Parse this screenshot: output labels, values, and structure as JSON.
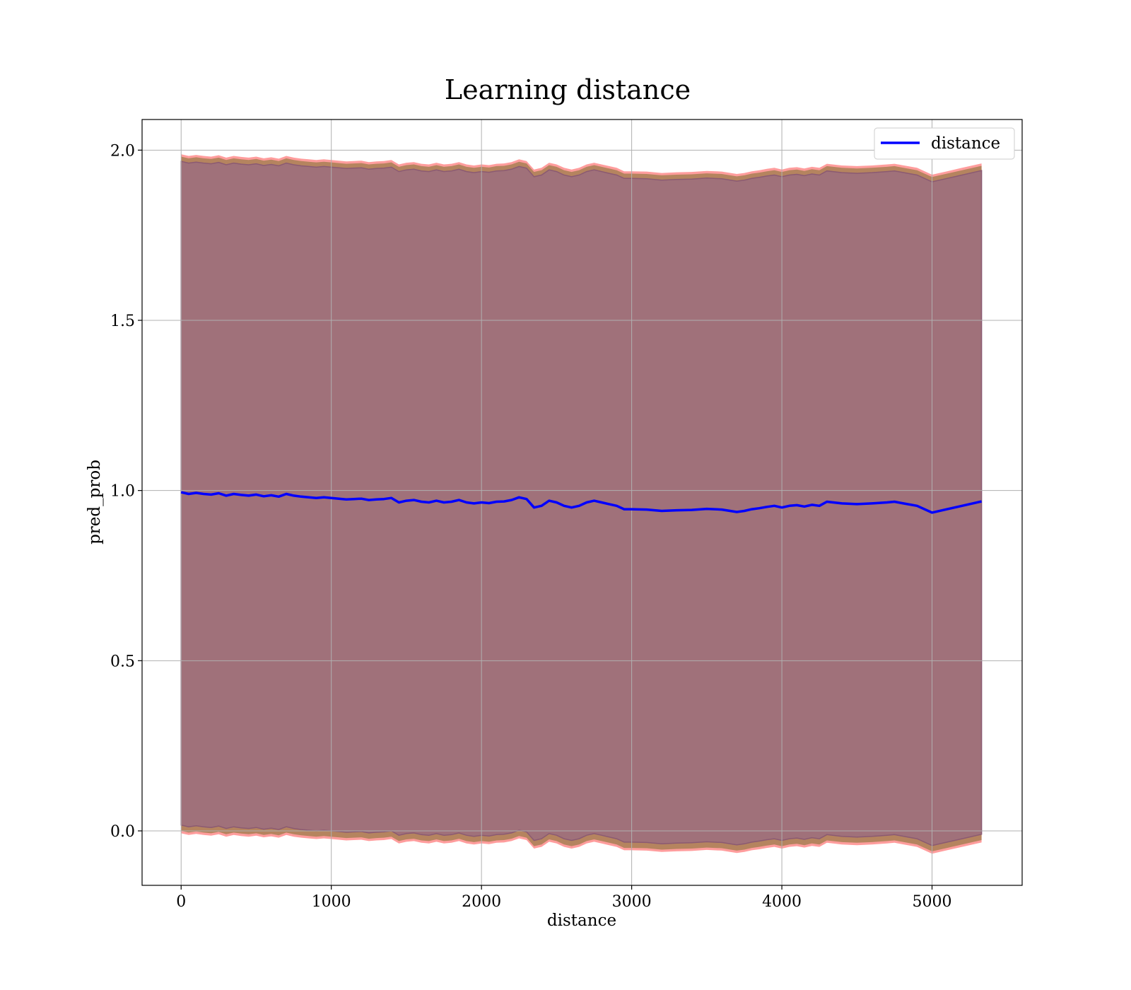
{
  "chart_data": {
    "type": "line",
    "title": "Learning distance",
    "xlabel": "distance",
    "ylabel": "pred_prob",
    "xlim": [
      -260,
      5600
    ],
    "ylim": [
      -0.16,
      2.09
    ],
    "xticks": [
      0,
      1000,
      2000,
      3000,
      4000,
      5000
    ],
    "yticks": [
      0.0,
      0.5,
      1.0,
      1.5,
      2.0
    ],
    "xtick_labels": [
      "0",
      "1000",
      "2000",
      "3000",
      "4000",
      "5000"
    ],
    "ytick_labels": [
      "0.0",
      "0.5",
      "1.0",
      "1.5",
      "2.0"
    ],
    "grid": true,
    "legend": {
      "position": "top-right",
      "entries": [
        "distance"
      ]
    },
    "colors": {
      "line": "#0000ff",
      "band_outer": "#ff8c8c",
      "band_mid": "#b5845f",
      "band_inner": "#a0717a",
      "band_inner_edge": "#8b5a72"
    },
    "series": [
      {
        "name": "distance",
        "x": [
          0,
          50,
          100,
          150,
          200,
          250,
          300,
          350,
          400,
          450,
          500,
          550,
          600,
          650,
          700,
          750,
          800,
          850,
          900,
          950,
          1000,
          1050,
          1100,
          1150,
          1200,
          1250,
          1300,
          1350,
          1400,
          1450,
          1500,
          1550,
          1600,
          1650,
          1700,
          1750,
          1800,
          1850,
          1900,
          1950,
          2000,
          2050,
          2100,
          2150,
          2200,
          2250,
          2300,
          2350,
          2400,
          2450,
          2500,
          2550,
          2600,
          2650,
          2700,
          2750,
          2800,
          2850,
          2900,
          2950,
          3000,
          3100,
          3200,
          3300,
          3400,
          3500,
          3600,
          3700,
          3750,
          3800,
          3850,
          3900,
          3950,
          4000,
          4050,
          4100,
          4150,
          4200,
          4250,
          4300,
          4400,
          4500,
          4600,
          4700,
          4750,
          4800,
          4900,
          5000,
          5100,
          5200,
          5330
        ],
        "y": [
          0.995,
          0.99,
          0.993,
          0.99,
          0.988,
          0.992,
          0.985,
          0.99,
          0.987,
          0.985,
          0.988,
          0.983,
          0.986,
          0.982,
          0.99,
          0.985,
          0.982,
          0.98,
          0.978,
          0.98,
          0.978,
          0.976,
          0.974,
          0.975,
          0.976,
          0.972,
          0.974,
          0.975,
          0.978,
          0.965,
          0.97,
          0.972,
          0.967,
          0.965,
          0.97,
          0.965,
          0.967,
          0.972,
          0.965,
          0.962,
          0.965,
          0.963,
          0.967,
          0.968,
          0.972,
          0.98,
          0.975,
          0.95,
          0.955,
          0.97,
          0.965,
          0.955,
          0.95,
          0.955,
          0.965,
          0.97,
          0.965,
          0.96,
          0.955,
          0.945,
          0.945,
          0.944,
          0.94,
          0.942,
          0.943,
          0.946,
          0.944,
          0.937,
          0.94,
          0.945,
          0.948,
          0.952,
          0.955,
          0.95,
          0.955,
          0.957,
          0.953,
          0.958,
          0.955,
          0.967,
          0.962,
          0.96,
          0.962,
          0.965,
          0.967,
          0.963,
          0.955,
          0.935,
          0.945,
          0.955,
          0.968
        ]
      }
    ],
    "bands": [
      {
        "name": "",
        "x": [
          0,
          50,
          100,
          150,
          200,
          250,
          300,
          350,
          400,
          450,
          500,
          550,
          600,
          650,
          700,
          750,
          800,
          850,
          900,
          950,
          1000,
          1050,
          1100,
          1150,
          1200,
          1250,
          1300,
          1350,
          1400,
          1450,
          1500,
          1550,
          1600,
          1650,
          1700,
          1750,
          1800,
          1850,
          1900,
          1950,
          2000,
          2050,
          2100,
          2150,
          2200,
          2250,
          2300,
          2350,
          2400,
          2450,
          2500,
          2550,
          2600,
          2650,
          2700,
          2750,
          2800,
          2850,
          2900,
          2950,
          3000,
          3100,
          3200,
          3300,
          3400,
          3500,
          3600,
          3700,
          3750,
          3800,
          3850,
          3900,
          3950,
          4000,
          4050,
          4100,
          4150,
          4200,
          4250,
          4300,
          4400,
          4500,
          4600,
          4700,
          4750,
          4800,
          4900,
          5000,
          5100,
          5200,
          5330
        ],
        "upper": [
          1.985,
          1.98,
          1.983,
          1.98,
          1.978,
          1.982,
          1.975,
          1.98,
          1.977,
          1.975,
          1.978,
          1.973,
          1.976,
          1.972,
          1.98,
          1.975,
          1.972,
          1.97,
          1.968,
          1.97,
          1.968,
          1.966,
          1.964,
          1.965,
          1.966,
          1.962,
          1.964,
          1.965,
          1.968,
          1.955,
          1.96,
          1.962,
          1.957,
          1.955,
          1.96,
          1.955,
          1.957,
          1.962,
          1.955,
          1.952,
          1.955,
          1.953,
          1.957,
          1.958,
          1.962,
          1.97,
          1.965,
          1.94,
          1.945,
          1.96,
          1.955,
          1.945,
          1.94,
          1.945,
          1.955,
          1.96,
          1.955,
          1.95,
          1.945,
          1.935,
          1.935,
          1.934,
          1.93,
          1.932,
          1.933,
          1.936,
          1.934,
          1.927,
          1.93,
          1.935,
          1.938,
          1.942,
          1.945,
          1.94,
          1.945,
          1.947,
          1.943,
          1.948,
          1.945,
          1.957,
          1.952,
          1.95,
          1.952,
          1.955,
          1.957,
          1.953,
          1.945,
          1.925,
          1.935,
          1.945,
          1.958
        ],
        "lower": [
          0.005,
          0.0,
          0.003,
          0.0,
          -0.002,
          0.002,
          -0.005,
          0.0,
          -0.003,
          -0.005,
          -0.002,
          -0.007,
          -0.004,
          -0.008,
          0.0,
          -0.005,
          -0.008,
          -0.01,
          -0.012,
          -0.01,
          -0.012,
          -0.014,
          -0.016,
          -0.015,
          -0.014,
          -0.018,
          -0.016,
          -0.015,
          -0.012,
          -0.025,
          -0.02,
          -0.018,
          -0.023,
          -0.025,
          -0.02,
          -0.025,
          -0.023,
          -0.018,
          -0.025,
          -0.028,
          -0.025,
          -0.027,
          -0.023,
          -0.022,
          -0.018,
          -0.01,
          -0.015,
          -0.04,
          -0.035,
          -0.02,
          -0.025,
          -0.035,
          -0.04,
          -0.035,
          -0.025,
          -0.02,
          -0.025,
          -0.03,
          -0.035,
          -0.045,
          -0.045,
          -0.046,
          -0.05,
          -0.048,
          -0.047,
          -0.044,
          -0.046,
          -0.053,
          -0.05,
          -0.045,
          -0.042,
          -0.038,
          -0.035,
          -0.04,
          -0.035,
          -0.033,
          -0.037,
          -0.032,
          -0.035,
          -0.023,
          -0.028,
          -0.03,
          -0.028,
          -0.025,
          -0.023,
          -0.027,
          -0.035,
          -0.055,
          -0.045,
          -0.035,
          -0.022
        ]
      }
    ]
  }
}
